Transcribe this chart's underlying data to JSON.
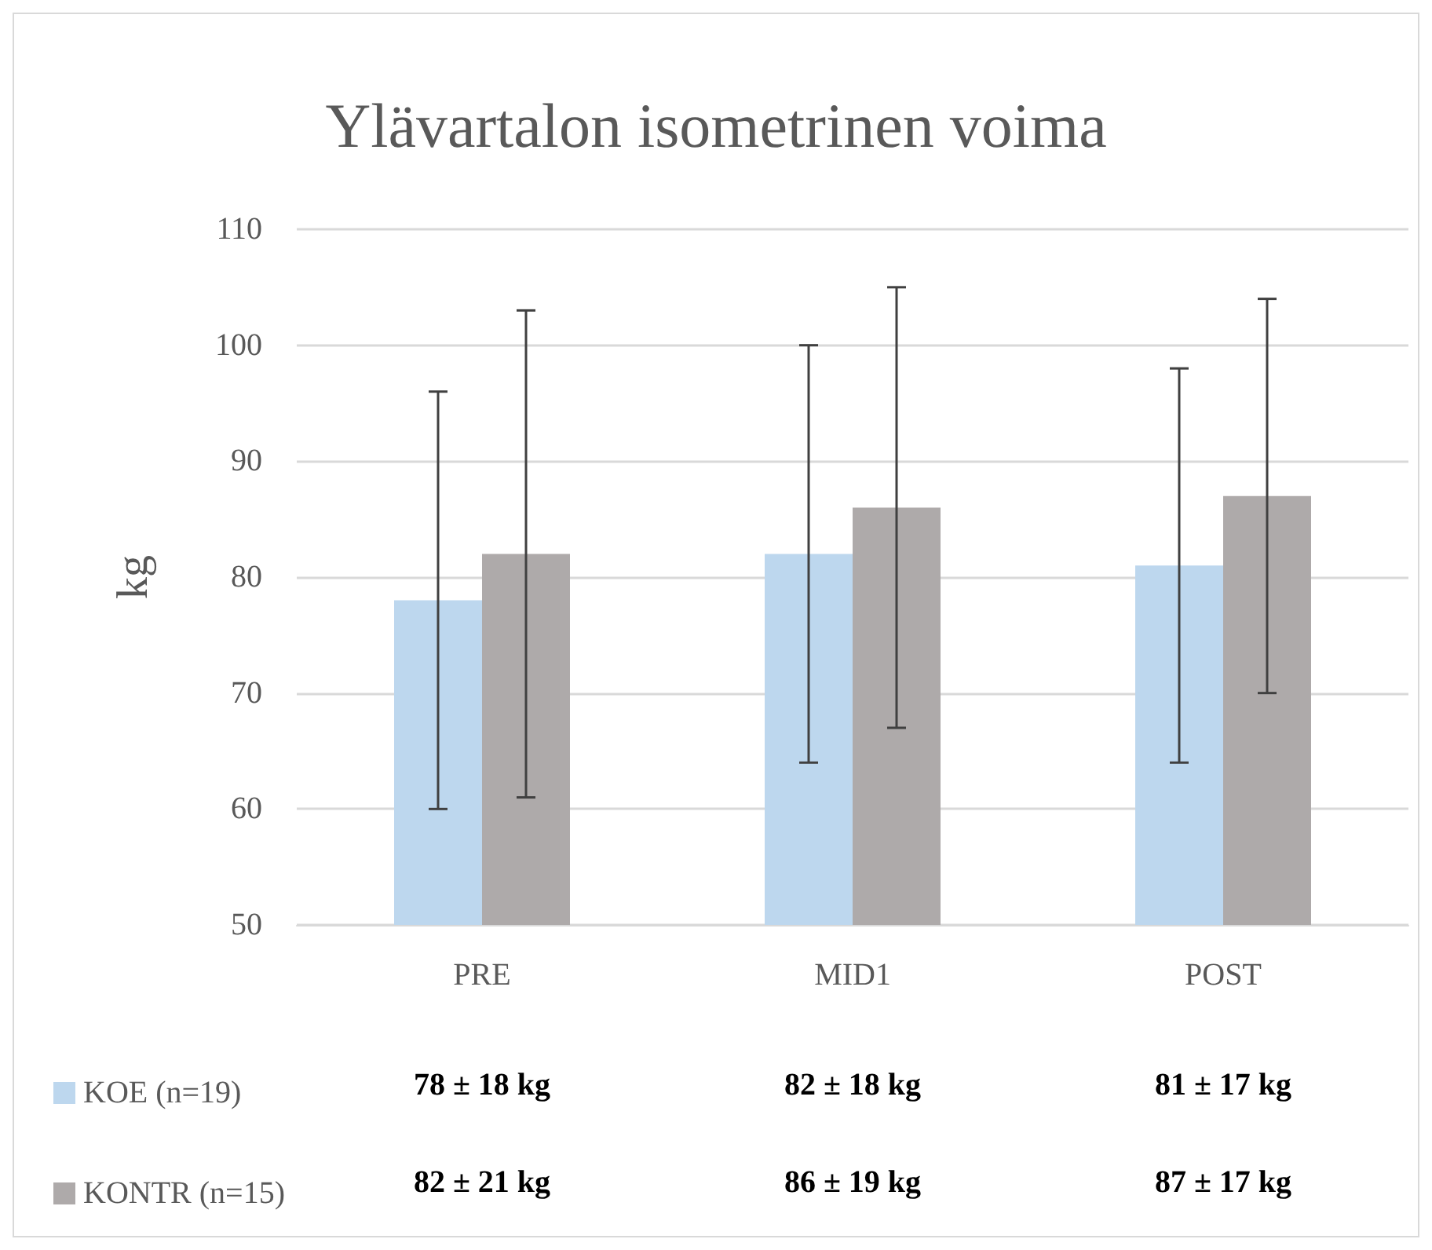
{
  "chart_data": {
    "type": "bar",
    "title": "Ylävartalon isometrinen voima",
    "ylabel": "kg",
    "categories": [
      "PRE",
      "MID1",
      "POST"
    ],
    "series": [
      {
        "name": "KOE (n=19)",
        "color": "#bdd7ee",
        "values": [
          78,
          82,
          81
        ],
        "errors": [
          18,
          18,
          17
        ],
        "value_labels": [
          "78 ± 18 kg",
          "82 ± 18 kg",
          "81 ± 17 kg"
        ]
      },
      {
        "name": "KONTR (n=15)",
        "color": "#aeaaaa",
        "values": [
          82,
          86,
          87
        ],
        "errors": [
          21,
          19,
          17
        ],
        "value_labels": [
          "82 ± 21 kg",
          "86 ± 19 kg",
          "87 ± 17 kg"
        ]
      }
    ],
    "ylim": [
      50,
      110
    ],
    "yticks": [
      50,
      60,
      70,
      80,
      90,
      100,
      110
    ],
    "grid": "y",
    "legend": "bottom"
  }
}
